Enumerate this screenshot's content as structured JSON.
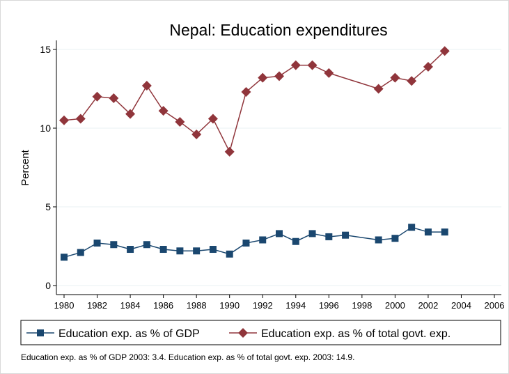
{
  "chart_data": {
    "type": "line",
    "title": "Nepal: Education expenditures",
    "ylabel": "Percent",
    "xlabel": "",
    "xlim": [
      1979.5,
      2006.5
    ],
    "ylim": [
      0,
      15
    ],
    "xticks": [
      1980,
      1982,
      1984,
      1986,
      1988,
      1990,
      1992,
      1994,
      1996,
      1998,
      2000,
      2002,
      2004,
      2006
    ],
    "yticks": [
      0,
      5,
      10,
      15
    ],
    "grid": true,
    "legend": "bottom",
    "series": [
      {
        "name": "Education exp. as % of GDP",
        "color": "#1a476f",
        "marker": "square",
        "points": [
          [
            1980,
            1.8
          ],
          [
            1981,
            2.1
          ],
          [
            1982,
            2.7
          ],
          [
            1983,
            2.6
          ],
          [
            1984,
            2.3
          ],
          [
            1985,
            2.6
          ],
          [
            1986,
            2.3
          ],
          [
            1987,
            2.2
          ],
          [
            1988,
            2.2
          ],
          [
            1989,
            2.3
          ],
          [
            1990,
            2.0
          ],
          [
            1991,
            2.7
          ],
          [
            1992,
            2.9
          ],
          [
            1993,
            3.3
          ],
          [
            1994,
            2.8
          ],
          [
            1995,
            3.3
          ],
          [
            1996,
            3.1
          ],
          [
            1997,
            3.2
          ],
          [
            1999,
            2.9
          ],
          [
            2000,
            3.0
          ],
          [
            2001,
            3.7
          ],
          [
            2002,
            3.4
          ],
          [
            2003,
            3.4
          ]
        ]
      },
      {
        "name": "Education exp. as % of total govt. exp.",
        "color": "#90353b",
        "marker": "diamond",
        "points": [
          [
            1980,
            10.5
          ],
          [
            1981,
            10.6
          ],
          [
            1982,
            12.0
          ],
          [
            1983,
            11.9
          ],
          [
            1984,
            10.9
          ],
          [
            1985,
            12.7
          ],
          [
            1986,
            11.1
          ],
          [
            1987,
            10.4
          ],
          [
            1988,
            9.6
          ],
          [
            1989,
            10.6
          ],
          [
            1990,
            8.5
          ],
          [
            1991,
            12.3
          ],
          [
            1992,
            13.2
          ],
          [
            1993,
            13.3
          ],
          [
            1994,
            14.0
          ],
          [
            1995,
            14.0
          ],
          [
            1996,
            13.5
          ],
          [
            1999,
            12.5
          ],
          [
            2000,
            13.2
          ],
          [
            2001,
            13.0
          ],
          [
            2002,
            13.9
          ],
          [
            2003,
            14.9
          ]
        ]
      }
    ]
  },
  "note": "Education exp. as % of GDP 2003: 3.4. Education exp. as % of total govt. exp. 2003: 14.9."
}
